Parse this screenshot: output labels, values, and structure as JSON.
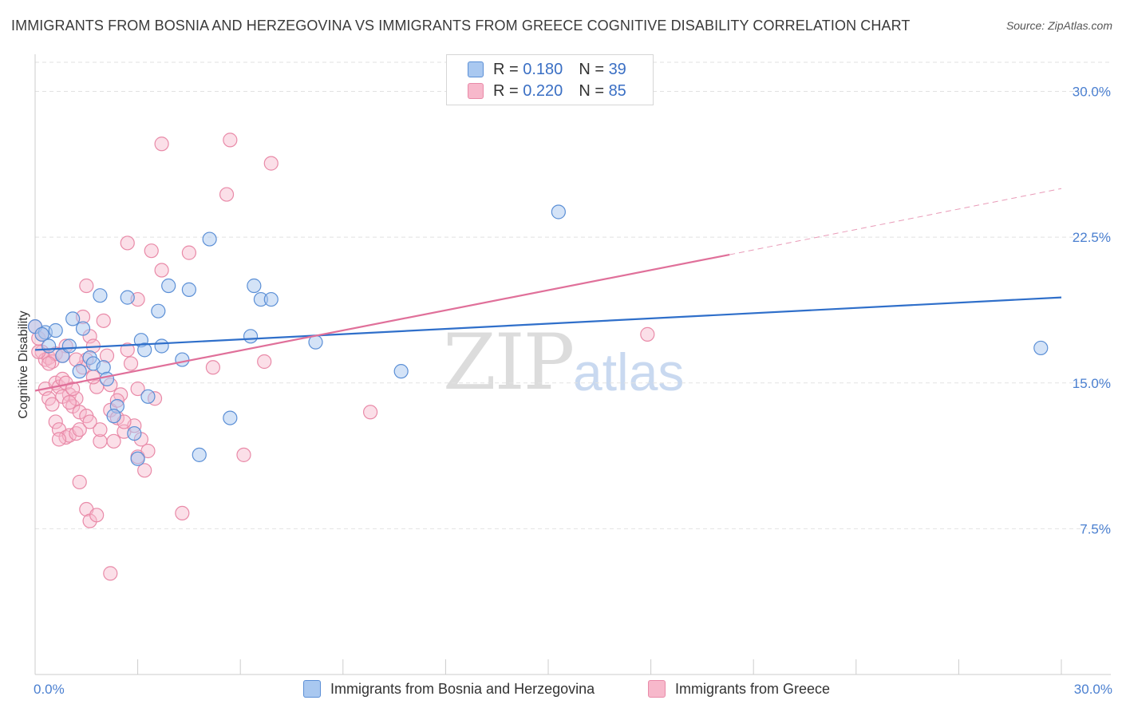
{
  "title": "IMMIGRANTS FROM BOSNIA AND HERZEGOVINA VS IMMIGRANTS FROM GREECE COGNITIVE DISABILITY CORRELATION CHART",
  "source": "Source: ZipAtlas.com",
  "watermark": {
    "zip": "ZIP",
    "atlas": "atlas"
  },
  "legend": {
    "r_label": "R =",
    "n_label": "N =",
    "series": [
      {
        "r": "0.180",
        "n": "39"
      },
      {
        "r": "0.220",
        "n": "85"
      }
    ]
  },
  "bottom_legend": [
    "Immigrants from Bosnia and Herzegovina",
    "Immigrants from Greece"
  ],
  "colors": {
    "blue_fill": "#a9c8f0",
    "blue_stroke": "#5b8fd6",
    "blue_line": "#2f6fca",
    "pink_fill": "#f7b8cb",
    "pink_stroke": "#e98aa8",
    "pink_line": "#e0709a",
    "grid": "#e2e2e2",
    "tick_text": "#4a7fd0"
  },
  "chart_data": {
    "type": "scatter",
    "title": "IMMIGRANTS FROM BOSNIA AND HERZEGOVINA VS IMMIGRANTS FROM GREECE COGNITIVE DISABILITY CORRELATION CHART",
    "xlabel": "",
    "ylabel": "Cognitive Disability",
    "xlim": [
      0,
      30
    ],
    "ylim": [
      0,
      31.5
    ],
    "y_ticks": [
      7.5,
      15.0,
      22.5,
      30.0
    ],
    "y_tick_labels": [
      "7.5%",
      "15.0%",
      "22.5%",
      "30.0%"
    ],
    "x_tick_labels": [
      "0.0%",
      "30.0%"
    ],
    "legend_position": "top-center",
    "series": [
      {
        "name": "Immigrants from Bosnia and Herzegovina",
        "r": 0.18,
        "n": 39,
        "trend": {
          "x": [
            0,
            30
          ],
          "y": [
            16.7,
            19.4
          ]
        },
        "points": [
          [
            0.0,
            17.9
          ],
          [
            0.3,
            17.6
          ],
          [
            0.6,
            17.7
          ],
          [
            1.1,
            18.3
          ],
          [
            1.4,
            17.8
          ],
          [
            0.4,
            16.9
          ],
          [
            0.8,
            16.4
          ],
          [
            1.0,
            16.9
          ],
          [
            1.3,
            15.6
          ],
          [
            1.6,
            16.3
          ],
          [
            1.7,
            16.0
          ],
          [
            2.0,
            15.8
          ],
          [
            2.1,
            15.2
          ],
          [
            1.9,
            19.5
          ],
          [
            2.7,
            19.4
          ],
          [
            3.1,
            17.2
          ],
          [
            3.2,
            16.7
          ],
          [
            3.7,
            16.9
          ],
          [
            3.6,
            18.7
          ],
          [
            3.9,
            20.0
          ],
          [
            4.3,
            16.2
          ],
          [
            4.5,
            19.8
          ],
          [
            5.1,
            22.4
          ],
          [
            2.4,
            13.8
          ],
          [
            2.3,
            13.3
          ],
          [
            2.9,
            12.4
          ],
          [
            3.0,
            11.1
          ],
          [
            3.3,
            14.3
          ],
          [
            4.8,
            11.3
          ],
          [
            5.7,
            13.2
          ],
          [
            6.3,
            17.4
          ],
          [
            6.4,
            20.0
          ],
          [
            6.6,
            19.3
          ],
          [
            6.9,
            19.3
          ],
          [
            8.2,
            17.1
          ],
          [
            10.7,
            15.6
          ],
          [
            15.3,
            23.8
          ],
          [
            29.4,
            16.8
          ],
          [
            0.2,
            17.5
          ]
        ]
      },
      {
        "name": "Immigrants from Greece",
        "r": 0.22,
        "n": 85,
        "trend": {
          "x": [
            0,
            20.3
          ],
          "y": [
            14.6,
            21.6
          ]
        },
        "trend_dashed": {
          "x": [
            20.3,
            30
          ],
          "y": [
            21.6,
            25.0
          ]
        },
        "points": [
          [
            0.0,
            17.9
          ],
          [
            0.1,
            17.3
          ],
          [
            0.2,
            16.6
          ],
          [
            0.3,
            16.2
          ],
          [
            0.4,
            16.3
          ],
          [
            0.5,
            16.1
          ],
          [
            0.6,
            16.5
          ],
          [
            0.3,
            14.7
          ],
          [
            0.4,
            14.2
          ],
          [
            0.6,
            15.0
          ],
          [
            0.7,
            14.8
          ],
          [
            0.8,
            15.2
          ],
          [
            0.9,
            15.0
          ],
          [
            1.0,
            14.4
          ],
          [
            1.1,
            13.8
          ],
          [
            0.8,
            14.3
          ],
          [
            1.2,
            14.2
          ],
          [
            1.3,
            13.5
          ],
          [
            1.5,
            13.3
          ],
          [
            0.6,
            13.0
          ],
          [
            0.7,
            12.6
          ],
          [
            0.9,
            12.2
          ],
          [
            1.0,
            12.3
          ],
          [
            1.2,
            12.4
          ],
          [
            0.7,
            12.1
          ],
          [
            1.3,
            12.6
          ],
          [
            1.4,
            15.8
          ],
          [
            1.5,
            16.2
          ],
          [
            1.6,
            17.4
          ],
          [
            1.7,
            16.9
          ],
          [
            1.8,
            14.8
          ],
          [
            1.9,
            12.0
          ],
          [
            2.0,
            18.2
          ],
          [
            2.1,
            16.4
          ],
          [
            2.2,
            13.6
          ],
          [
            2.3,
            12.0
          ],
          [
            2.4,
            13.2
          ],
          [
            2.5,
            14.4
          ],
          [
            2.6,
            12.5
          ],
          [
            2.7,
            16.7
          ],
          [
            2.8,
            16.0
          ],
          [
            2.9,
            12.8
          ],
          [
            3.0,
            11.2
          ],
          [
            3.1,
            12.1
          ],
          [
            3.0,
            14.7
          ],
          [
            3.2,
            10.5
          ],
          [
            3.3,
            11.5
          ],
          [
            3.5,
            14.2
          ],
          [
            2.7,
            22.2
          ],
          [
            3.4,
            21.8
          ],
          [
            3.7,
            20.8
          ],
          [
            3.7,
            27.3
          ],
          [
            4.5,
            21.7
          ],
          [
            5.2,
            15.8
          ],
          [
            5.6,
            24.7
          ],
          [
            5.7,
            27.5
          ],
          [
            6.1,
            11.3
          ],
          [
            6.7,
            16.1
          ],
          [
            6.9,
            26.3
          ],
          [
            9.8,
            13.5
          ],
          [
            17.9,
            17.5
          ],
          [
            1.3,
            9.9
          ],
          [
            1.5,
            8.5
          ],
          [
            1.6,
            7.9
          ],
          [
            1.8,
            8.2
          ],
          [
            2.2,
            5.2
          ],
          [
            4.3,
            8.3
          ],
          [
            3.0,
            19.3
          ],
          [
            1.5,
            20.0
          ],
          [
            1.4,
            18.4
          ],
          [
            0.2,
            17.5
          ],
          [
            1.1,
            14.7
          ],
          [
            2.4,
            14.1
          ],
          [
            0.5,
            13.9
          ],
          [
            1.7,
            15.3
          ],
          [
            0.9,
            16.9
          ],
          [
            2.6,
            13.0
          ],
          [
            1.9,
            12.6
          ],
          [
            0.4,
            16.0
          ],
          [
            1.2,
            16.2
          ],
          [
            1.0,
            14.0
          ],
          [
            2.2,
            14.9
          ],
          [
            1.6,
            13.0
          ],
          [
            0.8,
            16.4
          ],
          [
            0.1,
            16.6
          ]
        ]
      }
    ]
  }
}
